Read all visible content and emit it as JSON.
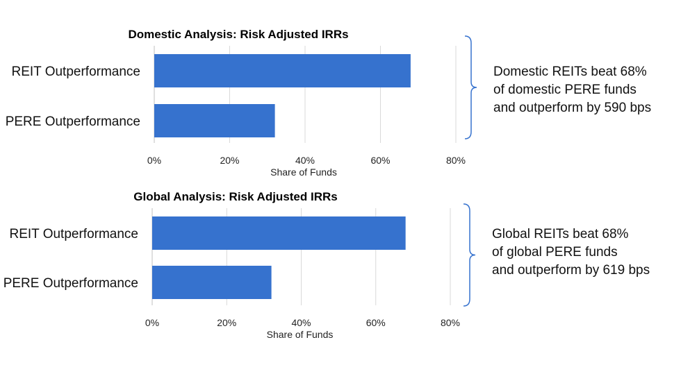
{
  "chart_data": [
    {
      "type": "bar",
      "orientation": "horizontal",
      "title": "Domestic Analysis: Risk Adjusted IRRs",
      "xlabel": "Share of Funds",
      "ylabel": "",
      "categories": [
        "REIT Outperformance",
        "PERE Outperformance"
      ],
      "values": [
        68,
        32
      ],
      "xlim": [
        0,
        80
      ],
      "ticks": [
        "0%",
        "20%",
        "40%",
        "60%",
        "80%"
      ],
      "grid": true,
      "color": "#3672CE",
      "annotation": [
        "Domestic REITs beat 68%",
        "of domestic PERE funds",
        "and outperform by 590 bps"
      ]
    },
    {
      "type": "bar",
      "orientation": "horizontal",
      "title": "Global Analysis: Risk Adjusted IRRs",
      "xlabel": "Share of Funds",
      "ylabel": "",
      "categories": [
        "REIT Outperformance",
        "PERE Outperformance"
      ],
      "values": [
        68,
        32
      ],
      "xlim": [
        0,
        80
      ],
      "ticks": [
        "0%",
        "20%",
        "40%",
        "60%",
        "80%"
      ],
      "grid": true,
      "color": "#3672CE",
      "annotation": [
        "Global REITs beat 68%",
        "of global PERE funds",
        "and outperform by 619 bps"
      ]
    }
  ]
}
